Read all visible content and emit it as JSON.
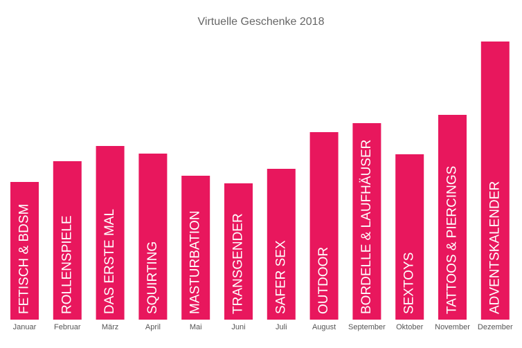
{
  "chart_data": {
    "type": "bar",
    "title": "Virtuelle Geschenke 2018",
    "categories": [
      "Januar",
      "Februar",
      "März",
      "April",
      "Mai",
      "Juni",
      "Juli",
      "August",
      "September",
      "Oktober",
      "November",
      "Dezember"
    ],
    "bar_labels": [
      "FETISCH & BDSM",
      "ROLLENSPIELE",
      "DAS ERSTE MAL",
      "SQUIRTING",
      "MASTURBATION",
      "TRANSGENDER",
      "SAFER SEX",
      "OUTDOOR",
      "BORDELLE & LAUFHÄUSER",
      "SEXTOYS",
      "TATTOOS & PIERCINGS",
      "ADVENTSKALENDER"
    ],
    "values": [
      199,
      229,
      251,
      240,
      208,
      197,
      218,
      271,
      284,
      239,
      296,
      402
    ],
    "color": "#e8175d"
  }
}
